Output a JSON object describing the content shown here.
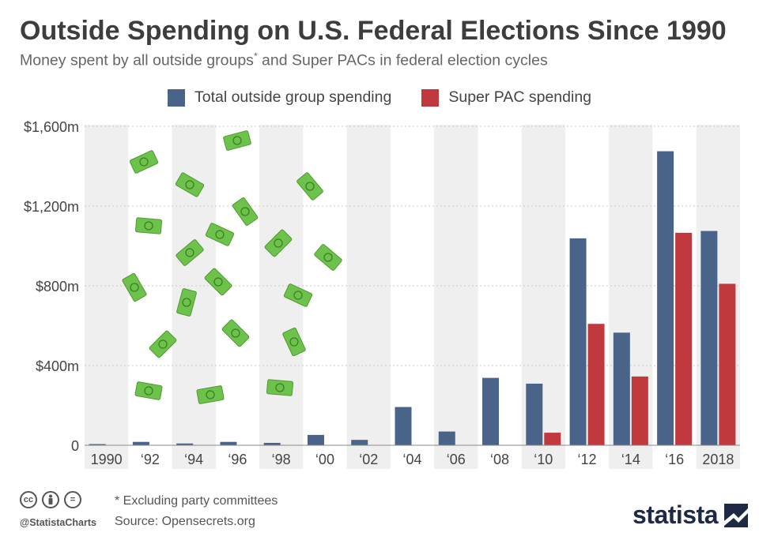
{
  "title": "Outside Spending on U.S. Federal Elections Since 1990",
  "subtitle": "Money spent by all outside groups",
  "subtitle_mark": "*",
  "subtitle_end": " and Super PACs in federal election cycles",
  "footnote": "* Excluding party committees",
  "source": "Source: Opensecrets.org",
  "handle": "@StatistaCharts",
  "brand": "statista",
  "cc_icons": [
    "cc-icon",
    "by-icon",
    "equal-icon"
  ],
  "colors": {
    "total": "#4a6489",
    "super_pac": "#c0393f",
    "band": "#efefef",
    "money": "#6cc24a"
  },
  "chart_data": {
    "type": "bar",
    "categories": [
      "1990",
      "'92",
      "'94",
      "'96",
      "'98",
      "'00",
      "'02",
      "'04",
      "'06",
      "'08",
      "'10",
      "'12",
      "'14",
      "'16",
      "2018"
    ],
    "series": [
      {
        "name": "Total outside group spending",
        "values": [
          6,
          17,
          9,
          17,
          12,
          52,
          27,
          192,
          69,
          338,
          309,
          1038,
          565,
          1475,
          1075
        ]
      },
      {
        "name": "Super PAC spending",
        "values": [
          0,
          0,
          0,
          0,
          0,
          0,
          0,
          0,
          0,
          0,
          63,
          609,
          345,
          1066,
          810
        ]
      }
    ],
    "yticks": [
      "0",
      "$400m",
      "$800m",
      "$1,200m",
      "$1,600m"
    ],
    "ytick_values": [
      0,
      400,
      800,
      1200,
      1600
    ],
    "ylim": [
      0,
      1600
    ],
    "legend_position": "top-center",
    "grid": true
  }
}
